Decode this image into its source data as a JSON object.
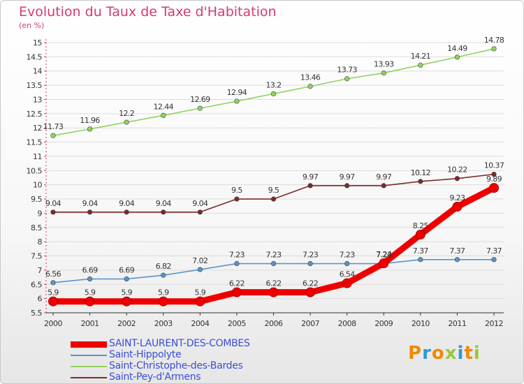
{
  "header": {
    "title": "Evolution du Taux de Taxe d'Habitation",
    "subtitle": "(en %)"
  },
  "chart_data": {
    "type": "line",
    "title": "Evolution du Taux de Taxe d'Habitation",
    "ylabel": "(en %)",
    "xlabel": "",
    "ylim": [
      5.5,
      15
    ],
    "yticks": [
      "5.5",
      "6",
      "6.5",
      "7",
      "7.5",
      "8",
      "8.5",
      "9",
      "9.5",
      "10",
      "10.5",
      "11",
      "11.5",
      "12",
      "12.5",
      "13",
      "13.5",
      "14",
      "14.5",
      "15"
    ],
    "categories": [
      "2000",
      "2001",
      "2002",
      "2003",
      "2004",
      "2005",
      "2006",
      "2007",
      "2008",
      "2009",
      "2010",
      "2011",
      "2012"
    ],
    "grid": "horizontal",
    "legend_position": "bottom-left",
    "series": [
      {
        "name": "SAINT-LAURENT-DES-COMBES",
        "color": "#ee0000",
        "values": [
          5.9,
          5.9,
          5.9,
          5.9,
          5.9,
          6.22,
          6.22,
          6.22,
          6.54,
          7.24,
          8.25,
          9.23,
          9.89
        ],
        "labels": [
          "5.9",
          "5.9",
          "5.9",
          "5.9",
          "5.9",
          "6.22",
          "6.22",
          "6.22",
          "6.54",
          "7.24",
          "8.25",
          "9.23",
          "9.89"
        ]
      },
      {
        "name": "Saint-Hippolyte",
        "color": "#5b93c9",
        "values": [
          6.56,
          6.69,
          6.69,
          6.82,
          7.02,
          7.23,
          7.23,
          7.23,
          7.23,
          7.23,
          7.37,
          7.37,
          7.37
        ],
        "labels": [
          "6.56",
          "6.69",
          "6.69",
          "6.82",
          "7.02",
          "7.23",
          "7.23",
          "7.23",
          "7.23",
          "7.23",
          "7.37",
          "7.37",
          "7.37"
        ]
      },
      {
        "name": "Saint-Christophe-des-Bardes",
        "color": "#8fd35f",
        "values": [
          11.73,
          11.96,
          12.2,
          12.44,
          12.69,
          12.94,
          13.2,
          13.46,
          13.73,
          13.93,
          14.21,
          14.49,
          14.78
        ],
        "labels": [
          "11.73",
          "11.96",
          "12.2",
          "12.44",
          "12.69",
          "12.94",
          "13.2",
          "13.46",
          "13.73",
          "13.93",
          "14.21",
          "14.49",
          "14.78"
        ]
      },
      {
        "name": "Saint-Pey-d'Armens",
        "color": "#7b2a2a",
        "values": [
          9.04,
          9.04,
          9.04,
          9.04,
          9.04,
          9.5,
          9.5,
          9.97,
          9.97,
          9.97,
          10.12,
          10.22,
          10.37
        ],
        "labels": [
          "9.04",
          "9.04",
          "9.04",
          "9.04",
          "9.04",
          "9.5",
          "9.5",
          "9.97",
          "9.97",
          "9.97",
          "10.12",
          "10.22",
          "10.37"
        ]
      }
    ]
  },
  "logo": {
    "text": "Proxiti",
    "colors": [
      "#f08a00",
      "#2a9ad8",
      "#f08a00",
      "#9ac83a",
      "#2a9ad8",
      "#f08a00",
      "#9ac83a"
    ]
  }
}
